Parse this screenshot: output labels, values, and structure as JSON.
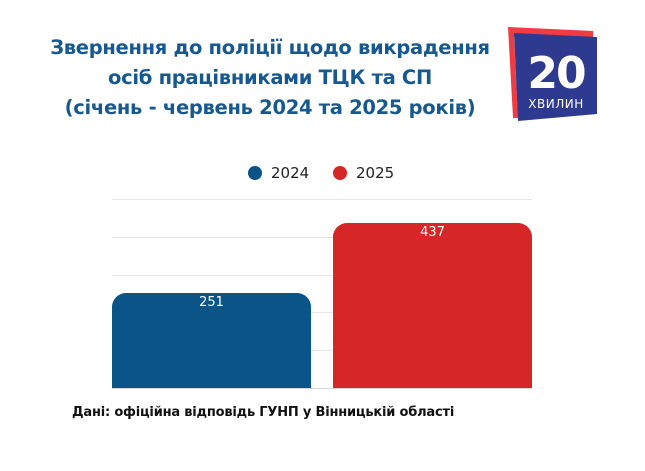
{
  "header": {
    "title_lines": [
      "Звернення до поліції щодо викрадення",
      "осіб працівниками ТЦК та СП",
      "(січень - червень 2024 та 2025 років)"
    ],
    "title_color": "#16588f"
  },
  "logo": {
    "number": "20",
    "word": "ХВИЛИН",
    "front_color": "#2e3a8f",
    "back_color": "#ef3b42"
  },
  "legend": [
    {
      "label": "2024",
      "color": "#0b5488"
    },
    {
      "label": "2025",
      "color": "#d72628"
    }
  ],
  "source": "Дані: офіційна відповідь ГУНП у Вінницькій області",
  "chart_data": {
    "type": "bar",
    "title": "Звернення до поліції щодо викрадення осіб працівниками ТЦК та СП (січень - червень 2024 та 2025 років)",
    "categories": [
      "2024",
      "2025"
    ],
    "values": [
      251,
      437
    ],
    "colors": [
      "#0b5488",
      "#d72628"
    ],
    "value_labels": [
      "251",
      "437"
    ],
    "xlabel": "",
    "ylabel": "",
    "ylim": [
      0,
      500
    ],
    "gridlines": [
      0,
      100,
      200,
      300,
      400,
      500
    ],
    "grid": true,
    "axis_tick_labels_visible": false,
    "legend_position": "top",
    "source_note": "Дані: офіційна відповідь ГУНП у Вінницькій області"
  }
}
